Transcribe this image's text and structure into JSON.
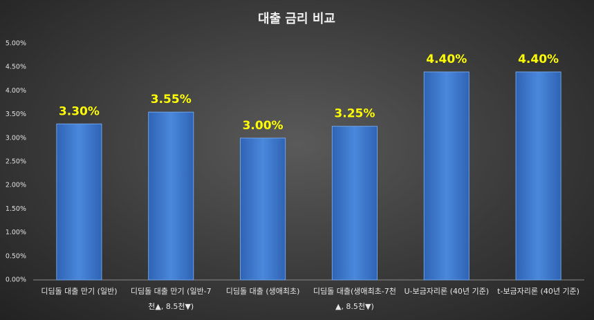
{
  "chart_data": {
    "type": "bar",
    "title": "대출 금리 비교",
    "categories": [
      "디딤돌 대출 만기 (일반)",
      "디딤돌 대출 만기 (일반-7천▲, 8.5천▼)",
      "디딤돌 대출 (생애최초)",
      "디딤돌 대출(생애최초-7천▲, 8.5천▼)",
      "U-보금자리론 (40년 기준)",
      "t-보금자리론 (40년 기준)"
    ],
    "values": [
      3.3,
      3.55,
      3.0,
      3.25,
      4.4,
      4.4
    ],
    "value_labels": [
      "3.30%",
      "3.55%",
      "3.00%",
      "3.25%",
      "4.40%",
      "4.40%"
    ],
    "color": "#3f7bd0",
    "ylim": [
      0,
      5
    ],
    "yticks": [
      {
        "value": 0,
        "label": "0.00%"
      },
      {
        "value": 0.5,
        "label": "0.50%"
      },
      {
        "value": 1,
        "label": "1.00%"
      },
      {
        "value": 1.5,
        "label": "1.50%"
      },
      {
        "value": 2,
        "label": "2.00%"
      },
      {
        "value": 2.5,
        "label": "2.50%"
      },
      {
        "value": 3,
        "label": "3.00%"
      },
      {
        "value": 3.5,
        "label": "3.50%"
      },
      {
        "value": 4,
        "label": "4.00%"
      },
      {
        "value": 4.5,
        "label": "4.50%"
      },
      {
        "value": 5,
        "label": "5.00%"
      }
    ],
    "grid": false
  }
}
